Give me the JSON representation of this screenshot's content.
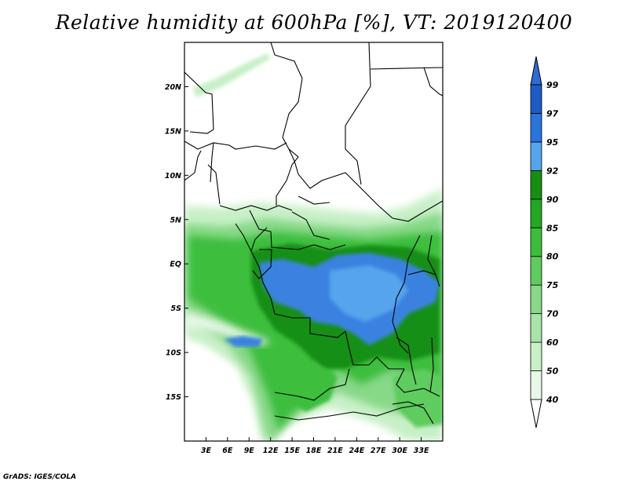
{
  "title": "Relative humidity at 600hPa [%], VT: 2019120400",
  "credit": "GrADS: IGES/COLA",
  "map": {
    "lon_range": [
      0,
      36
    ],
    "lat_range": [
      -20,
      25
    ],
    "lon_ticks": [
      {
        "value": 3,
        "label": "3E"
      },
      {
        "value": 6,
        "label": "6E"
      },
      {
        "value": 9,
        "label": "9E"
      },
      {
        "value": 12,
        "label": "12E"
      },
      {
        "value": 15,
        "label": "15E"
      },
      {
        "value": 18,
        "label": "18E"
      },
      {
        "value": 21,
        "label": "21E"
      },
      {
        "value": 24,
        "label": "24E"
      },
      {
        "value": 27,
        "label": "27E"
      },
      {
        "value": 30,
        "label": "30E"
      },
      {
        "value": 33,
        "label": "33E"
      }
    ],
    "lat_ticks": [
      {
        "value": 20,
        "label": "20N"
      },
      {
        "value": 15,
        "label": "15N"
      },
      {
        "value": 10,
        "label": "10N"
      },
      {
        "value": 5,
        "label": "5N"
      },
      {
        "value": 0,
        "label": "EQ"
      },
      {
        "value": -5,
        "label": "5S"
      },
      {
        "value": -10,
        "label": "10S"
      },
      {
        "value": -15,
        "label": "15S"
      }
    ]
  },
  "colorbar": {
    "levels": [
      "40",
      "50",
      "60",
      "70",
      "75",
      "80",
      "85",
      "90",
      "92",
      "95",
      "97",
      "99"
    ],
    "colors": [
      "#ffffff",
      "#e6f8e6",
      "#c8f0c8",
      "#a8e4a8",
      "#88d888",
      "#5fcc5f",
      "#3cbe3c",
      "#22a822",
      "#148f14",
      "#56a4ec",
      "#2a74dc",
      "#1e5cc4",
      "#2f6bd2"
    ]
  }
}
